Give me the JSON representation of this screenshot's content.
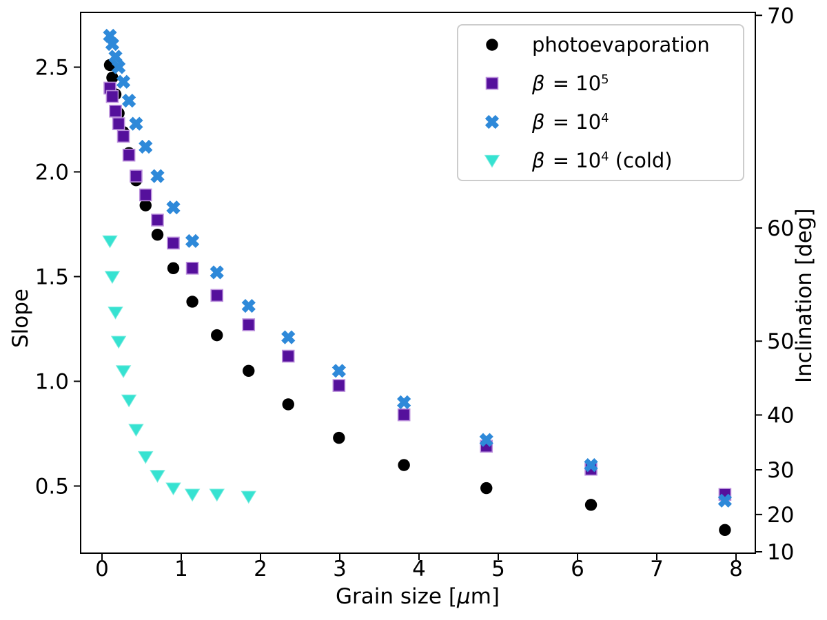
{
  "figure": {
    "background": "#ffffff",
    "spine_color": "#000000"
  },
  "chart_data": {
    "type": "scatter",
    "title": "",
    "xlabel_pre": "Grain size [",
    "xlabel_mu": "μ",
    "xlabel_post": "m]",
    "ylabel": "Slope",
    "y2label": "Inclination [deg]",
    "xlim": [
      -0.27,
      8.24
    ],
    "ylim": [
      0.18,
      2.76
    ],
    "grid": false,
    "legend_position": "upper right",
    "x_ticks": [
      0,
      1,
      2,
      3,
      4,
      5,
      6,
      7,
      8
    ],
    "y_ticks_left": [
      "0.5",
      "1.0",
      "1.5",
      "2.0",
      "2.5"
    ],
    "y_ticks_left_values": [
      0.5,
      1.0,
      1.5,
      2.0,
      2.5
    ],
    "y_ticks_right_deg": [
      10,
      20,
      30,
      40,
      50,
      60,
      70
    ],
    "right_axis_mapping": "slope = tan(inclination)",
    "series": [
      {
        "name": "photoevaporation",
        "marker": "circle",
        "color": "#000000",
        "edge": "#000000",
        "x": [
          0.1,
          0.13,
          0.17,
          0.21,
          0.27,
          0.34,
          0.43,
          0.55,
          0.7,
          0.9,
          1.14,
          1.45,
          1.85,
          2.35,
          2.99,
          3.81,
          4.85,
          6.17,
          7.86
        ],
        "y": [
          2.51,
          2.45,
          2.37,
          2.28,
          2.19,
          2.09,
          1.96,
          1.84,
          1.7,
          1.54,
          1.38,
          1.22,
          1.05,
          0.89,
          0.73,
          0.6,
          0.49,
          0.41,
          0.29
        ]
      },
      {
        "name": "beta = 10^5",
        "marker": "square",
        "color": "#55109c",
        "edge": "#bb8fdc",
        "x": [
          0.1,
          0.13,
          0.17,
          0.21,
          0.27,
          0.34,
          0.43,
          0.55,
          0.7,
          0.9,
          1.14,
          1.45,
          1.85,
          2.35,
          2.99,
          3.81,
          4.85,
          6.17,
          7.86
        ],
        "y": [
          2.4,
          2.36,
          2.29,
          2.23,
          2.17,
          2.08,
          1.98,
          1.89,
          1.77,
          1.66,
          1.54,
          1.41,
          1.27,
          1.12,
          0.98,
          0.84,
          0.69,
          0.58,
          0.46
        ]
      },
      {
        "name": "beta = 10^4",
        "marker": "x_filled",
        "color": "#2e89d9",
        "edge": "#2e89d9",
        "x": [
          0.1,
          0.13,
          0.17,
          0.21,
          0.27,
          0.34,
          0.43,
          0.55,
          0.7,
          0.9,
          1.14,
          1.45,
          1.85,
          2.35,
          2.99,
          3.81,
          4.85,
          6.17,
          7.86
        ],
        "y": [
          2.65,
          2.61,
          2.55,
          2.5,
          2.43,
          2.34,
          2.23,
          2.12,
          1.98,
          1.83,
          1.67,
          1.52,
          1.36,
          1.21,
          1.05,
          0.9,
          0.72,
          0.6,
          0.43
        ]
      },
      {
        "name": "beta = 10^4 (cold)",
        "marker": "triangle_down",
        "color": "#36e2d1",
        "edge": "#7becdf",
        "x": [
          0.1,
          0.13,
          0.17,
          0.21,
          0.27,
          0.34,
          0.43,
          0.55,
          0.7,
          0.9,
          1.14,
          1.45,
          1.85
        ],
        "y": [
          1.67,
          1.5,
          1.33,
          1.19,
          1.05,
          0.91,
          0.77,
          0.64,
          0.55,
          0.49,
          0.46,
          0.46,
          0.45
        ]
      }
    ]
  },
  "legend": {
    "items": [
      {
        "marker": "circle",
        "color": "#000000",
        "edge": "#000000",
        "text": "photoevaporation"
      },
      {
        "marker": "square",
        "color": "#55109c",
        "edge": "#bb8fdc",
        "beta": "β",
        "eq": " = 10",
        "sup": "5",
        "post": ""
      },
      {
        "marker": "x_filled",
        "color": "#2e89d9",
        "edge": "#2e89d9",
        "beta": "β",
        "eq": " = 10",
        "sup": "4",
        "post": ""
      },
      {
        "marker": "triangle_down",
        "color": "#36e2d1",
        "edge": "#7becdf",
        "beta": "β",
        "eq": " = 10",
        "sup": "4",
        "post": " (cold)"
      }
    ]
  }
}
